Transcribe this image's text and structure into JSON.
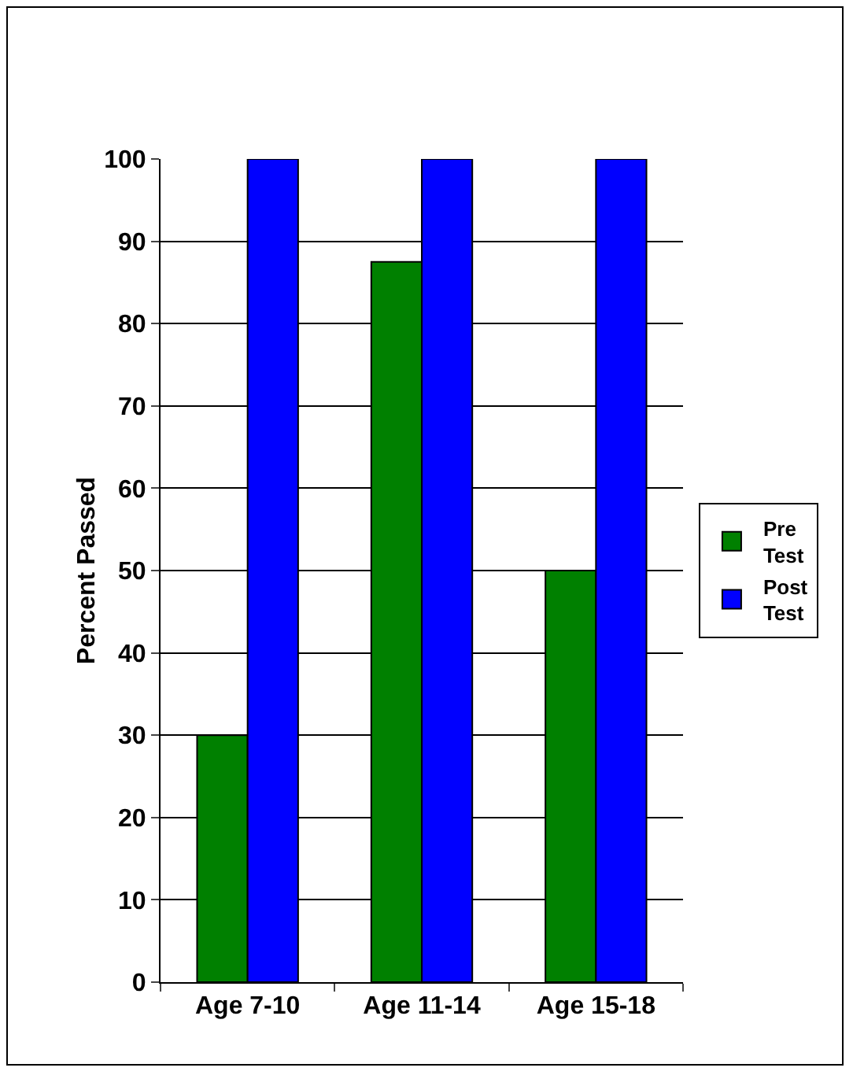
{
  "chart_data": {
    "type": "bar",
    "ylabel": "Percent Passed",
    "categories": [
      "Age 7-10",
      "Age 11-14",
      "Age 15-18"
    ],
    "series": [
      {
        "name": "Pre Test",
        "color": "#008000",
        "values": [
          30,
          87.5,
          50
        ]
      },
      {
        "name": "Post Test",
        "color": "#0000ff",
        "values": [
          100,
          100,
          100
        ]
      }
    ],
    "ylim": [
      0,
      100
    ],
    "yticks": [
      0,
      10,
      20,
      30,
      40,
      50,
      60,
      70,
      80,
      90,
      100
    ],
    "grid": "y",
    "legend": "right"
  }
}
